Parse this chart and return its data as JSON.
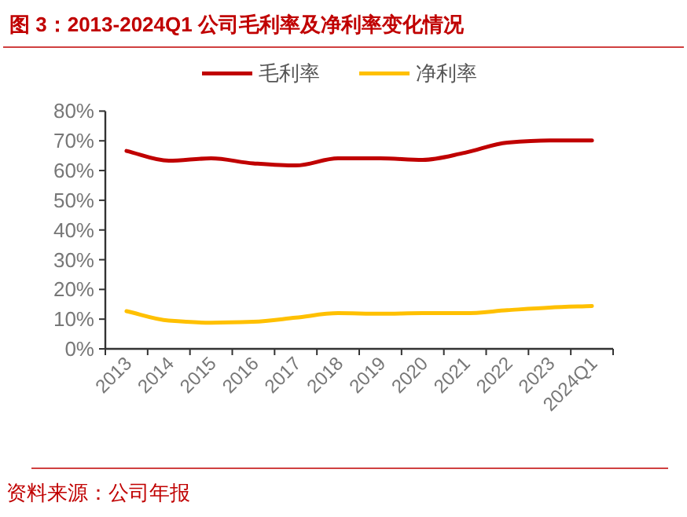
{
  "chart_data": {
    "type": "line",
    "title": "图 3：2013-2024Q1 公司毛利率及净利率变化情况",
    "categories": [
      "2013",
      "2014",
      "2015",
      "2016",
      "2017",
      "2018",
      "2019",
      "2020",
      "2021",
      "2022",
      "2023",
      "2024Q1"
    ],
    "series": [
      {
        "name": "毛利率",
        "color": "#c00000",
        "values": [
          66.6,
          63.3,
          64.1,
          62.4,
          61.7,
          64.1,
          64.1,
          63.6,
          66.0,
          69.4,
          70.1,
          70.1
        ]
      },
      {
        "name": "净利率",
        "color": "#ffc000",
        "values": [
          12.7,
          9.5,
          8.8,
          9.1,
          10.5,
          12.0,
          11.8,
          12.0,
          12.0,
          13.0,
          13.9,
          14.4
        ]
      }
    ],
    "ylim": [
      0,
      80
    ],
    "yticks": [
      {
        "value": 0,
        "label": "0%"
      },
      {
        "value": 10,
        "label": "10%"
      },
      {
        "value": 20,
        "label": "20%"
      },
      {
        "value": 30,
        "label": "30%"
      },
      {
        "value": 40,
        "label": "40%"
      },
      {
        "value": 50,
        "label": "50%"
      },
      {
        "value": 60,
        "label": "60%"
      },
      {
        "value": 70,
        "label": "70%"
      },
      {
        "value": 80,
        "label": "80%"
      }
    ],
    "legend": "top",
    "grid": false,
    "annotations": [
      "资料来源：公司年报"
    ]
  }
}
